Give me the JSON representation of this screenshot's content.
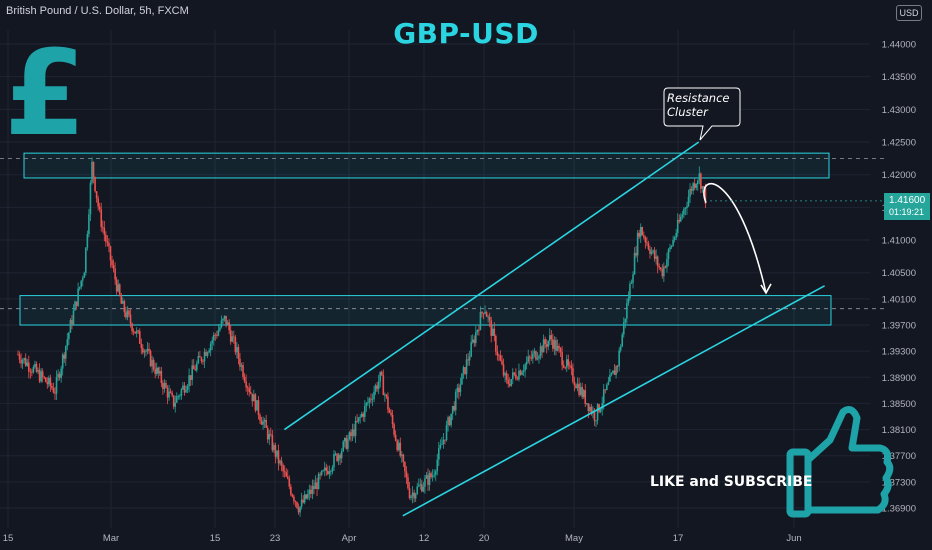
{
  "header": {
    "symbol": "British Pound / U.S. Dollar, 5h, FXCM",
    "currency_button": "USD"
  },
  "title": "GBP-USD",
  "annotation": {
    "callout_line1": "Resistance",
    "callout_line2": "Cluster"
  },
  "cta_text": "LIKE and SUBSCRIBE",
  "price_tag": {
    "price": "1.41600",
    "countdown": "01:19:21"
  },
  "icons": {
    "pound_sign": "pound-sign-icon",
    "thumb": "thumbs-up-icon"
  },
  "colors": {
    "background": "#131722",
    "accent": "#2ad4e0",
    "bullish": "#26a69a",
    "bearish": "#ef5350",
    "grid": "#1f2433"
  },
  "chart_data": {
    "type": "candlestick",
    "title": "GBP-USD",
    "y_axis_ticks": [
      "1.44000",
      "1.43500",
      "1.43000",
      "1.42500",
      "1.42000",
      "1.41500",
      "1.41000",
      "1.40500",
      "1.40100",
      "1.39700",
      "1.39300",
      "1.38900",
      "1.38500",
      "1.38100",
      "1.37700",
      "1.37300",
      "1.36900"
    ],
    "x_axis_ticks": [
      "15",
      "Mar",
      "15",
      "23",
      "Apr",
      "12",
      "20",
      "May",
      "17",
      "Jun"
    ],
    "ylim": [
      1.366,
      1.445
    ],
    "approx_close_path": [
      {
        "x": "Feb 15",
        "y": 1.3925
      },
      {
        "x": "Feb 20",
        "y": 1.387
      },
      {
        "x": "Feb 24",
        "y": 1.406
      },
      {
        "x": "Feb 25",
        "y": 1.4215
      },
      {
        "x": "Feb 26",
        "y": 1.414
      },
      {
        "x": "Mar 1",
        "y": 1.4
      },
      {
        "x": "Mar 8",
        "y": 1.385
      },
      {
        "x": "Mar 15",
        "y": 1.398
      },
      {
        "x": "Mar 18",
        "y": 1.388
      },
      {
        "x": "Mar 23",
        "y": 1.374
      },
      {
        "x": "Mar 25",
        "y": 1.369
      },
      {
        "x": "Apr 1",
        "y": 1.38
      },
      {
        "x": "Apr 5",
        "y": 1.389
      },
      {
        "x": "Apr 9",
        "y": 1.371
      },
      {
        "x": "Apr 12",
        "y": 1.374
      },
      {
        "x": "Apr 19",
        "y": 1.4
      },
      {
        "x": "Apr 22",
        "y": 1.388
      },
      {
        "x": "Apr 28",
        "y": 1.395
      },
      {
        "x": "May 4",
        "y": 1.383
      },
      {
        "x": "May 7",
        "y": 1.391
      },
      {
        "x": "May 10",
        "y": 1.412
      },
      {
        "x": "May 13",
        "y": 1.405
      },
      {
        "x": "May 17",
        "y": 1.418
      },
      {
        "x": "May 18",
        "y": 1.42
      },
      {
        "x": "May 19",
        "y": 1.416
      }
    ],
    "last_price": 1.416,
    "zones": [
      {
        "low": 1.4195,
        "high": 1.4233
      },
      {
        "low": 1.397,
        "high": 1.4015
      }
    ],
    "dashed_levels": [
      1.4225,
      1.3995
    ],
    "trendlines": [
      {
        "from": {
          "x": "Mar 23",
          "y": 1.381
        },
        "to": {
          "x": "May 18",
          "y": 1.425
        }
      },
      {
        "from": {
          "x": "Apr 8",
          "y": 1.3678
        },
        "to": {
          "x": "Jun 4",
          "y": 1.403
        }
      }
    ],
    "projection": {
      "from": {
        "x": "May 19",
        "y": 1.42
      },
      "to": {
        "x": "May 22",
        "y": 1.401
      }
    }
  }
}
